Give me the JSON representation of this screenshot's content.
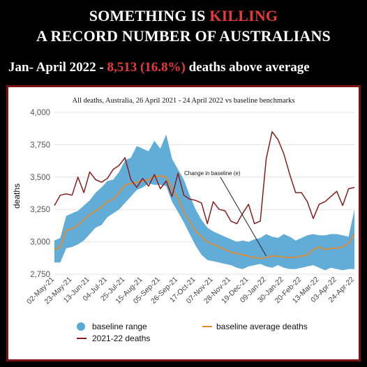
{
  "header": {
    "line1_prefix": "SOMETHING IS ",
    "line1_highlight": "KILLING",
    "line2": "A RECORD NUMBER OF AUSTRALIANS",
    "subline_prefix": "Jan- April 2022 - ",
    "subline_highlight": "8,513 (16.8%)",
    "subline_suffix": " deaths above average"
  },
  "colors": {
    "background": "#000000",
    "headline": "#ffffff",
    "highlight": "#e8393b",
    "panel_border": "#7a1216",
    "range_fill": "#5aa9d6",
    "average_line": "#e08a2c",
    "deaths_line": "#8b1c1c"
  },
  "chart_data": {
    "type": "line",
    "title": "All deaths, Australia, 26 April 2021 - 24 April 2022 vs baseline benchmarks",
    "xlabel": "",
    "ylabel": "deaths",
    "ylim": [
      2750,
      4000
    ],
    "yticks": [
      2750,
      3000,
      3250,
      3500,
      3750,
      4000
    ],
    "ytick_labels": [
      "2,750",
      "3,000",
      "3,250",
      "3,500",
      "3,750",
      "4,000"
    ],
    "x": [
      "02-May-21",
      "09-May-21",
      "16-May-21",
      "23-May-21",
      "30-May-21",
      "06-Jun-21",
      "13-Jun-21",
      "20-Jun-21",
      "27-Jun-21",
      "04-Jul-21",
      "11-Jul-21",
      "18-Jul-21",
      "25-Jul-21",
      "01-Aug-21",
      "08-Aug-21",
      "15-Aug-21",
      "22-Aug-21",
      "29-Aug-21",
      "05-Sep-21",
      "12-Sep-21",
      "19-Sep-21",
      "26-Sep-21",
      "03-Oct-21",
      "10-Oct-21",
      "17-Oct-21",
      "24-Oct-21",
      "31-Oct-21",
      "07-Nov-21",
      "14-Nov-21",
      "21-Nov-21",
      "28-Nov-21",
      "05-Dec-21",
      "12-Dec-21",
      "19-Dec-21",
      "26-Dec-21",
      "02-Jan-22",
      "09-Jan-22",
      "16-Jan-22",
      "23-Jan-22",
      "30-Jan-22",
      "06-Feb-22",
      "13-Feb-22",
      "20-Feb-22",
      "27-Feb-22",
      "06-Mar-22",
      "13-Mar-22",
      "20-Mar-22",
      "27-Mar-22",
      "03-Apr-22",
      "10-Apr-22",
      "17-Apr-22",
      "24-Apr-22"
    ],
    "xtick_labels": [
      "02-May-21",
      "23-May-21",
      "13-Jun-21",
      "04-Jul-21",
      "25-Jul-21",
      "15-Aug-21",
      "05-Sep-21",
      "26-Sep-21",
      "17-Oct-21",
      "07-Nov-21",
      "28-Nov-21",
      "19-Dec-21",
      "09-Jan-22",
      "30-Jan-22",
      "20-Feb-22",
      "13-Mar-22",
      "03-Apr-22",
      "24-Apr-22"
    ],
    "series": [
      {
        "name": "baseline range",
        "kind": "band",
        "low": [
          2840,
          2840,
          2950,
          2960,
          2980,
          3010,
          3060,
          3110,
          3130,
          3190,
          3220,
          3250,
          3300,
          3350,
          3400,
          3420,
          3450,
          3440,
          3440,
          3430,
          3310,
          3230,
          3150,
          3060,
          2970,
          2900,
          2860,
          2850,
          2840,
          2830,
          2820,
          2800,
          2790,
          2810,
          2820,
          2830,
          2810,
          2800,
          2820,
          2800,
          2790,
          2790,
          2800,
          2810,
          2820,
          2800,
          2780,
          2800,
          2790,
          2780,
          2790,
          2790
        ],
        "high": [
          3010,
          3030,
          3200,
          3220,
          3240,
          3280,
          3320,
          3380,
          3420,
          3470,
          3480,
          3540,
          3630,
          3650,
          3740,
          3720,
          3700,
          3780,
          3720,
          3830,
          3640,
          3560,
          3480,
          3360,
          3250,
          3170,
          3110,
          3080,
          3060,
          3040,
          3020,
          3000,
          3010,
          3000,
          3020,
          3030,
          3060,
          3040,
          3030,
          3060,
          3040,
          3010,
          3030,
          3050,
          3060,
          3050,
          3050,
          3060,
          3060,
          3050,
          3040,
          3250
        ]
      },
      {
        "name": "baseline average deaths",
        "values": [
          2940,
          2960,
          3090,
          3100,
          3130,
          3170,
          3210,
          3240,
          3270,
          3310,
          3330,
          3380,
          3440,
          3450,
          3460,
          3470,
          3480,
          3500,
          3510,
          3500,
          3410,
          3340,
          3230,
          3160,
          3080,
          3040,
          3000,
          2980,
          2960,
          2940,
          2920,
          2910,
          2900,
          2890,
          2880,
          2870,
          2880,
          2890,
          2890,
          2880,
          2880,
          2880,
          2890,
          2900,
          2940,
          2960,
          2940,
          2950,
          2950,
          2960,
          2990,
          3060
        ]
      },
      {
        "name": "2021-22 deaths",
        "values": [
          3280,
          3360,
          3370,
          3360,
          3500,
          3380,
          3540,
          3480,
          3460,
          3490,
          3560,
          3590,
          3650,
          3480,
          3420,
          3490,
          3430,
          3520,
          3410,
          3470,
          3350,
          3530,
          3360,
          3330,
          3320,
          3300,
          3140,
          3310,
          3250,
          3240,
          3160,
          3140,
          3220,
          3290,
          3140,
          3160,
          3640,
          3850,
          3790,
          3680,
          3520,
          3380,
          3380,
          3310,
          3180,
          3290,
          3310,
          3350,
          3390,
          3280,
          3410,
          3420
        ]
      }
    ],
    "annotations": [
      {
        "text": "Change in baseline (e)",
        "points_to": "09-Jan-22"
      }
    ],
    "legend": {
      "placement": "bottom",
      "items": [
        "baseline range",
        "baseline average deaths",
        "2021-22 deaths"
      ]
    },
    "grid": true
  }
}
